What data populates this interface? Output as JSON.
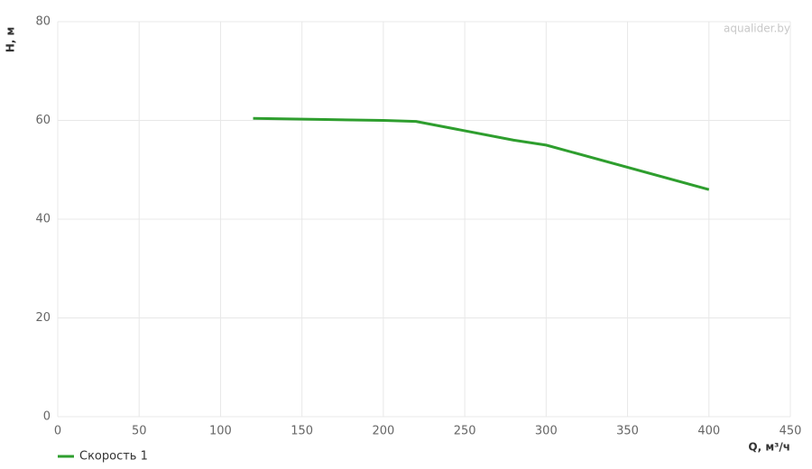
{
  "chart_data": {
    "type": "line",
    "watermark": "aqualider.by",
    "x_label": "Q, м³/ч",
    "y_label": "H, м",
    "x": [
      120,
      160,
      200,
      220,
      280,
      300,
      400
    ],
    "series": [
      {
        "name": "Скорость 1",
        "color": "#2e9e2e",
        "values": [
          60.4,
          60.2,
          60,
          59.8,
          56,
          55,
          46
        ]
      }
    ],
    "xlim": [
      0,
      450
    ],
    "xticks": [
      0,
      50,
      100,
      150,
      200,
      250,
      300,
      350,
      400,
      450
    ],
    "ylim": [
      0,
      80
    ],
    "yticks": [
      0,
      20,
      40,
      60,
      80
    ],
    "grid": true,
    "legend": "bottom-left"
  }
}
